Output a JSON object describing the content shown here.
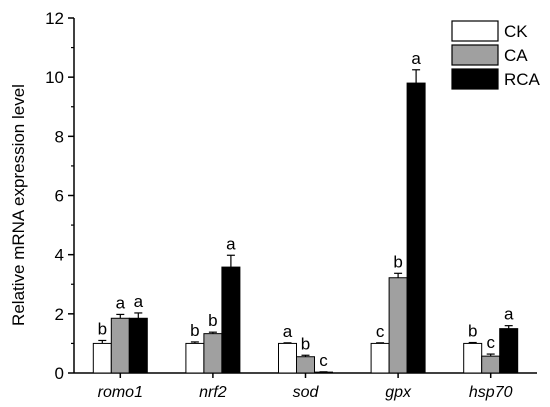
{
  "chart_data": {
    "type": "bar",
    "title": "",
    "xlabel": "",
    "ylabel": "Relative mRNA expression level",
    "ylim": [
      0,
      12
    ],
    "yticks": [
      0,
      2,
      4,
      6,
      8,
      10,
      12
    ],
    "categories": [
      "romo1",
      "nrf2",
      "sod",
      "gpx",
      "hsp70"
    ],
    "legend_position": "top-right",
    "grid": false,
    "series": [
      {
        "name": "CK",
        "color": "#ffffff",
        "values": [
          1.0,
          1.0,
          1.0,
          1.0,
          1.0
        ],
        "errors": [
          0.1,
          0.05,
          0.02,
          0.02,
          0.03
        ],
        "labels": [
          "b",
          "b",
          "a",
          "c",
          "b"
        ]
      },
      {
        "name": "CA",
        "color": "#a0a0a0",
        "values": [
          1.85,
          1.33,
          0.55,
          3.22,
          0.57
        ],
        "errors": [
          0.13,
          0.05,
          0.05,
          0.15,
          0.07
        ],
        "labels": [
          "a",
          "b",
          "b",
          "b",
          "c"
        ]
      },
      {
        "name": "RCA",
        "color": "#000000",
        "values": [
          1.85,
          3.58,
          0.03,
          9.8,
          1.5
        ],
        "errors": [
          0.18,
          0.4,
          0.01,
          0.45,
          0.1
        ],
        "labels": [
          "a",
          "a",
          "c",
          "a",
          "a"
        ]
      }
    ]
  }
}
